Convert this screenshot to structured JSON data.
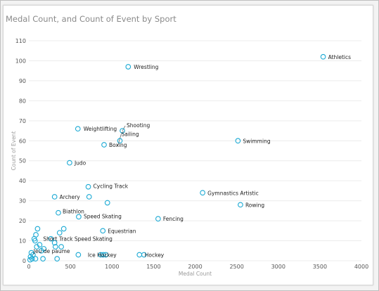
{
  "colors": {
    "point": "#1aa9d4",
    "grid": "#ececec",
    "leader": "#555555"
  },
  "chart_data": {
    "type": "scatter",
    "title": "Medal Count, and Count of Event by Sport",
    "xlabel": "Medal Count",
    "ylabel": "Count of Event",
    "xlim": [
      0,
      4000
    ],
    "ylim": [
      0,
      110
    ],
    "xticks": [
      0,
      500,
      1000,
      1500,
      2000,
      2500,
      3000,
      3500,
      4000
    ],
    "yticks": [
      0,
      10,
      20,
      30,
      40,
      50,
      60,
      70,
      80,
      90,
      100,
      110
    ],
    "grid": "horizontal",
    "points": [
      {
        "x": 3540,
        "y": 102,
        "label": "Athletics"
      },
      {
        "x": 1195,
        "y": 97,
        "label": "Wrestling"
      },
      {
        "x": 590,
        "y": 66,
        "label": "Weightlifting"
      },
      {
        "x": 1125,
        "y": 65,
        "label": "Shooting"
      },
      {
        "x": 1095,
        "y": 60,
        "label": "Sailing"
      },
      {
        "x": 2515,
        "y": 60,
        "label": "Swimming"
      },
      {
        "x": 905,
        "y": 58,
        "label": "Boxing"
      },
      {
        "x": 490,
        "y": 49,
        "label": "Judo"
      },
      {
        "x": 715,
        "y": 37,
        "label": "Cycling Track"
      },
      {
        "x": 2090,
        "y": 34,
        "label": "Gymnastics Artistic"
      },
      {
        "x": 310,
        "y": 32,
        "label": "Archery"
      },
      {
        "x": 725,
        "y": 32,
        "label": ""
      },
      {
        "x": 945,
        "y": 29,
        "label": ""
      },
      {
        "x": 2545,
        "y": 28,
        "label": "Rowing"
      },
      {
        "x": 355,
        "y": 24,
        "label": "Biathlon"
      },
      {
        "x": 600,
        "y": 22,
        "label": "Speed Skating"
      },
      {
        "x": 1555,
        "y": 21,
        "label": "Fencing"
      },
      {
        "x": 890,
        "y": 15,
        "label": "Equestrian"
      },
      {
        "x": 420,
        "y": 16,
        "label": ""
      },
      {
        "x": 370,
        "y": 14,
        "label": ""
      },
      {
        "x": 105,
        "y": 16,
        "label": ""
      },
      {
        "x": 85,
        "y": 13,
        "label": ""
      },
      {
        "x": 65,
        "y": 11,
        "label": ""
      },
      {
        "x": 265,
        "y": 11,
        "label": "Short Track Speed Skating"
      },
      {
        "x": 75,
        "y": 10,
        "label": ""
      },
      {
        "x": 310,
        "y": 9,
        "label": ""
      },
      {
        "x": 130,
        "y": 8,
        "label": ""
      },
      {
        "x": 95,
        "y": 7,
        "label": ""
      },
      {
        "x": 180,
        "y": 6,
        "label": ""
      },
      {
        "x": 320,
        "y": 7,
        "label": ""
      },
      {
        "x": 390,
        "y": 7,
        "label": ""
      },
      {
        "x": 150,
        "y": 5,
        "label": "Jeu de paume"
      },
      {
        "x": 30,
        "y": 4,
        "label": ""
      },
      {
        "x": 50,
        "y": 3,
        "label": ""
      },
      {
        "x": 20,
        "y": 2,
        "label": ""
      },
      {
        "x": 40,
        "y": 1,
        "label": ""
      },
      {
        "x": 15,
        "y": 0.5,
        "label": ""
      },
      {
        "x": 80,
        "y": 1,
        "label": ""
      },
      {
        "x": 170,
        "y": 1,
        "label": ""
      },
      {
        "x": 340,
        "y": 1,
        "label": ""
      },
      {
        "x": 595,
        "y": 3,
        "label": ""
      },
      {
        "x": 895,
        "y": 3,
        "label": "Ice Hockey"
      },
      {
        "x": 865,
        "y": 3,
        "label": ""
      },
      {
        "x": 925,
        "y": 3,
        "label": ""
      },
      {
        "x": 1330,
        "y": 3,
        "label": ""
      },
      {
        "x": 1385,
        "y": 3,
        "label": "Hockey"
      }
    ]
  }
}
